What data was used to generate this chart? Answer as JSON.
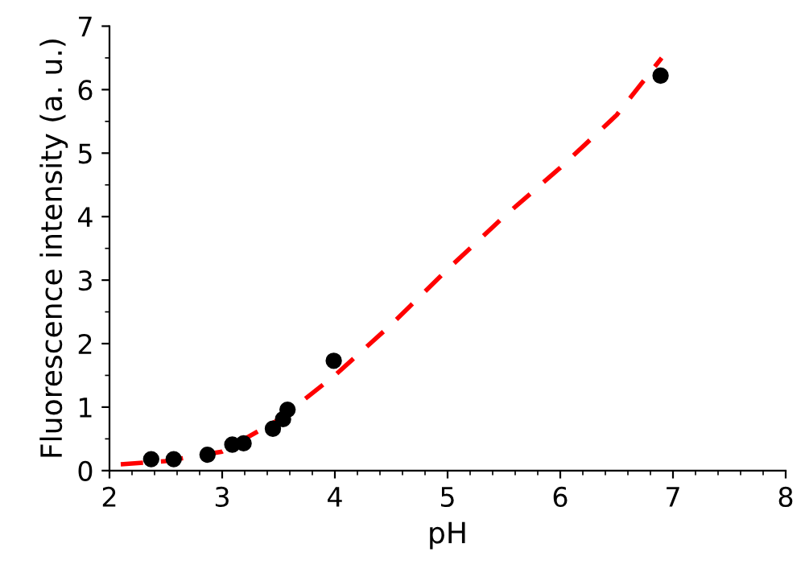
{
  "chart_data": {
    "type": "scatter",
    "xlabel": "pH",
    "ylabel": "Fluorescence intensity (a. u.)",
    "xlim": [
      2,
      8
    ],
    "ylim": [
      0,
      7
    ],
    "xticks": [
      2,
      3,
      4,
      5,
      6,
      7,
      8
    ],
    "yticks": [
      0,
      1,
      2,
      3,
      4,
      5,
      6,
      7
    ],
    "grid": false,
    "legend": false,
    "series": [
      {
        "color": "#000000",
        "marker": "circle",
        "x": [
          2.37,
          2.57,
          2.87,
          3.09,
          3.19,
          3.45,
          3.54,
          3.58,
          3.99,
          6.89
        ],
        "values": [
          0.18,
          0.18,
          0.25,
          0.41,
          0.43,
          0.66,
          0.81,
          0.96,
          1.73,
          6.22
        ]
      },
      {
        "type": "line",
        "color": "#ff0000",
        "line_style": "dashed",
        "marker": "none",
        "x": [
          2.1,
          2.5,
          3.0,
          3.5,
          4.0,
          4.5,
          5.0,
          5.5,
          6.0,
          6.5,
          6.9
        ],
        "values": [
          0.1,
          0.15,
          0.3,
          0.8,
          1.5,
          2.3,
          3.17,
          4.0,
          4.77,
          5.6,
          6.5
        ]
      }
    ]
  }
}
